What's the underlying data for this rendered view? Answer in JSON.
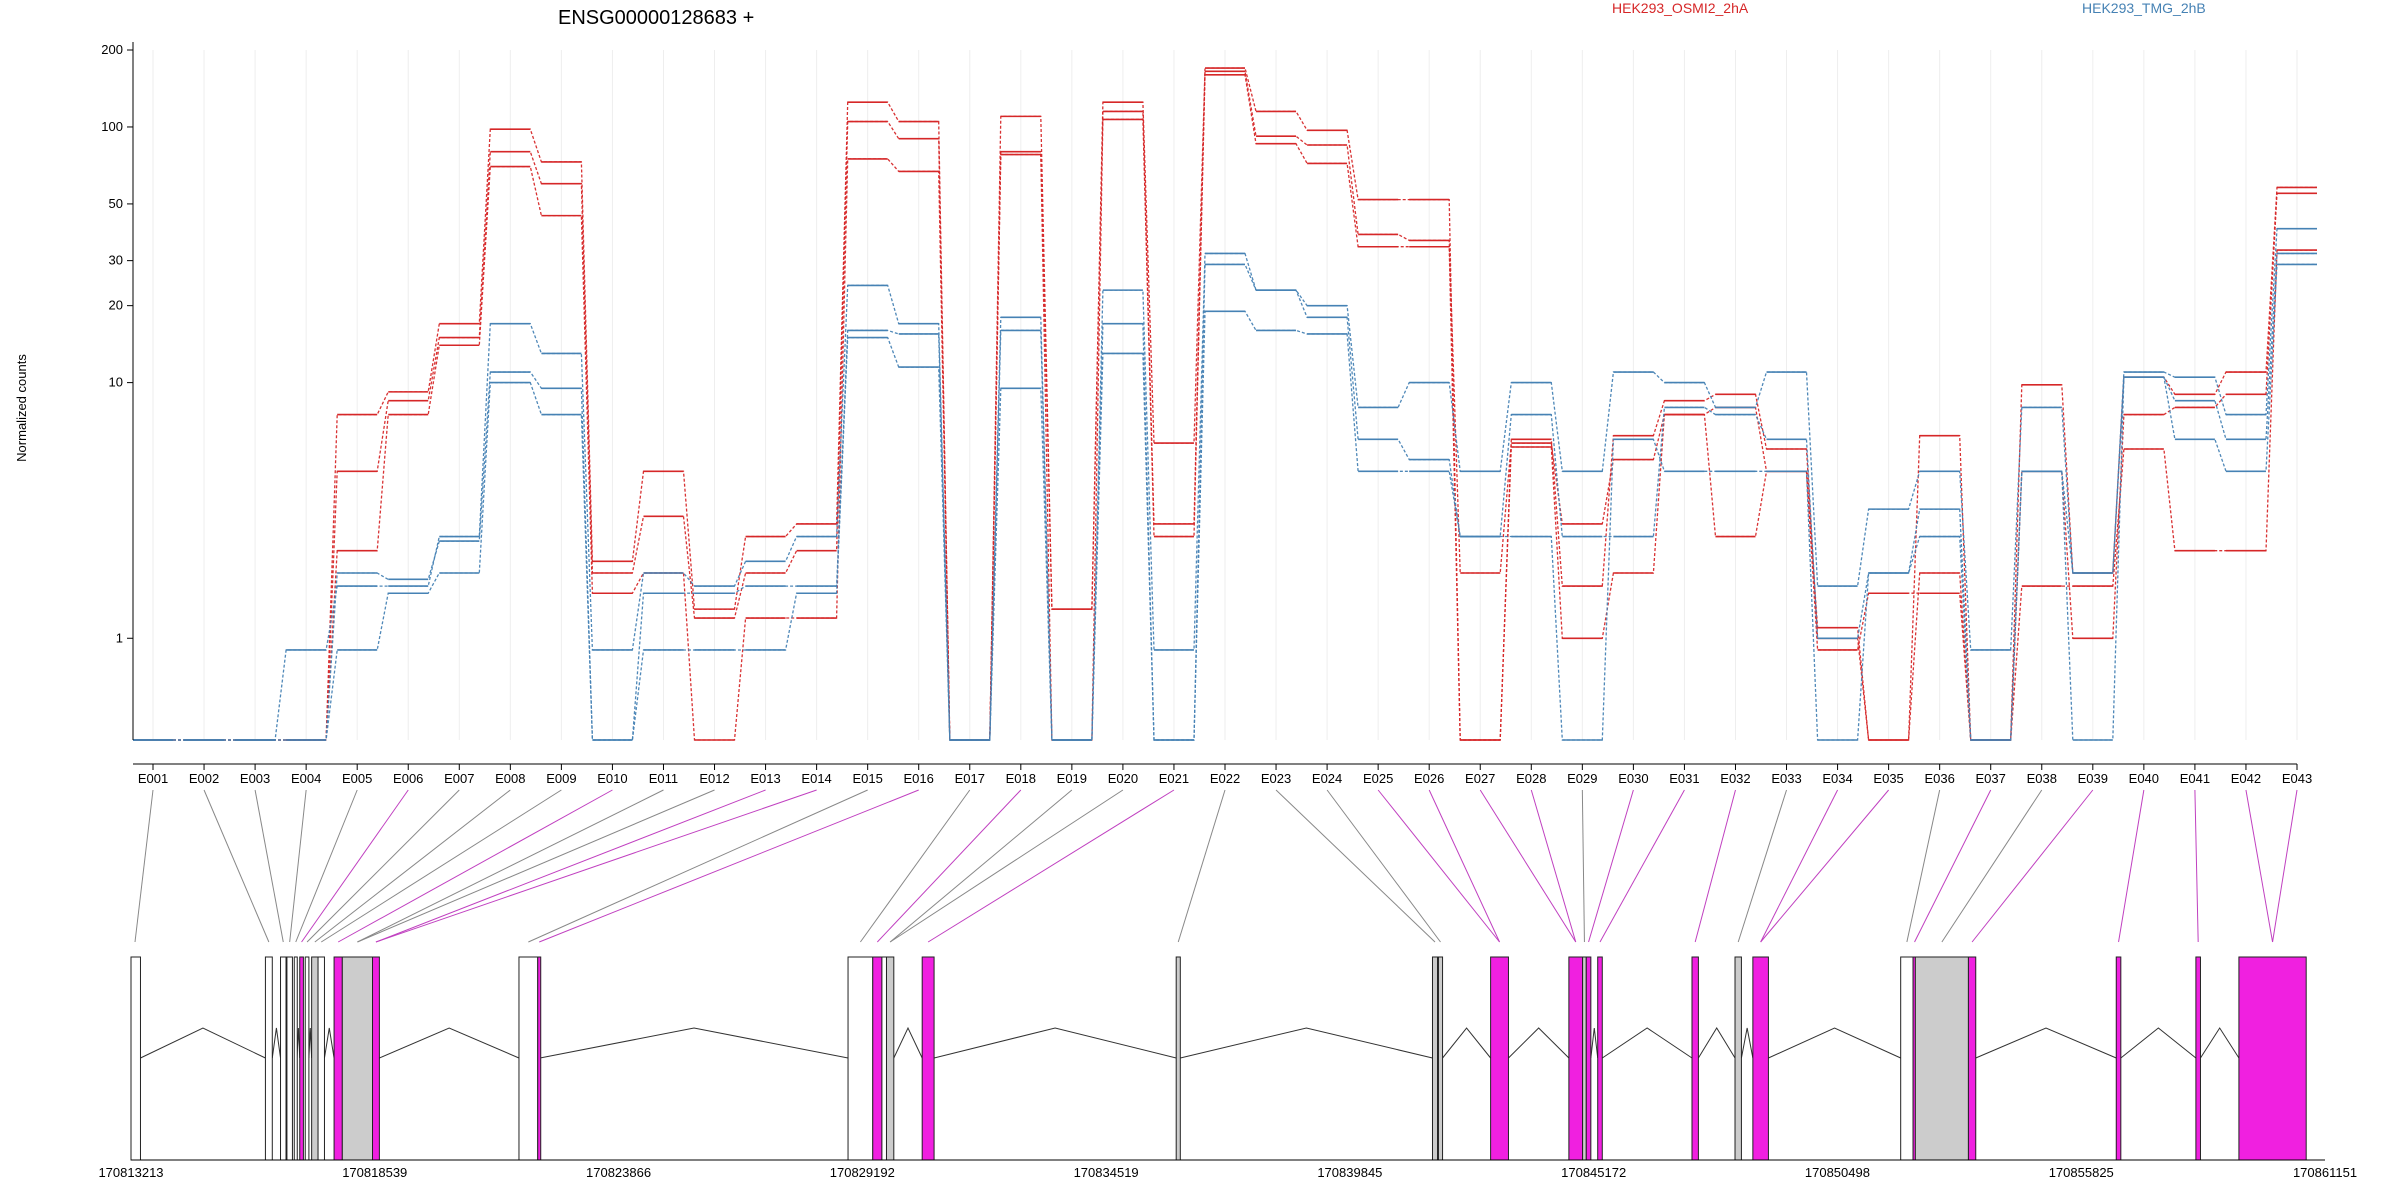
{
  "chart_data": {
    "type": "line",
    "title": "ENSG00000128683 +",
    "ylabel": "Normalized counts",
    "yscale": "log",
    "y_floor": 0.4,
    "ylim": [
      0.4,
      200
    ],
    "yticks": [
      1,
      10,
      20,
      30,
      50,
      100,
      200
    ],
    "grid": "vertical",
    "legend": [
      {
        "label": "HEK293_OSMI2_2hA",
        "color": "#d62728"
      },
      {
        "label": "HEK293_TMG_2hB",
        "color": "#4682b4"
      }
    ],
    "categories": [
      "E001",
      "E002",
      "E003",
      "E004",
      "E005",
      "E006",
      "E007",
      "E008",
      "E009",
      "E010",
      "E011",
      "E012",
      "E013",
      "E014",
      "E015",
      "E016",
      "E017",
      "E018",
      "E019",
      "E020",
      "E021",
      "E022",
      "E023",
      "E024",
      "E025",
      "E026",
      "E027",
      "E028",
      "E029",
      "E030",
      "E031",
      "E032",
      "E033",
      "E034",
      "E035",
      "E036",
      "E037",
      "E038",
      "E039",
      "E040",
      "E041",
      "E042",
      "E043"
    ],
    "series": [
      {
        "group": "HEK293_OSMI2_2hA",
        "color": "#d62728",
        "values": [
          0.4,
          0.4,
          0.4,
          0.4,
          7.5,
          9.2,
          17,
          98,
          73,
          2,
          4.5,
          1.3,
          2.5,
          2.8,
          125,
          105,
          0.4,
          110,
          1.3,
          125,
          5.8,
          170,
          115,
          97,
          52,
          52,
          0.4,
          6,
          1.6,
          6.2,
          8.5,
          9,
          5.5,
          1.0,
          0.4,
          6.2,
          0.4,
          9.8,
          1.8,
          10.5,
          9,
          11,
          58
        ]
      },
      {
        "group": "HEK293_OSMI2_2hA",
        "color": "#d62728",
        "values": [
          0.4,
          0.4,
          0.4,
          0.4,
          4.5,
          8.5,
          15,
          80,
          60,
          1.8,
          3,
          1.2,
          1.8,
          2.2,
          105,
          90,
          0.4,
          80,
          1.3,
          115,
          2.8,
          165,
          92,
          85,
          38,
          36,
          1.8,
          5.8,
          2.8,
          5,
          7.5,
          8,
          4.5,
          1.1,
          0.4,
          1.8,
          0.4,
          4.5,
          1.0,
          7.5,
          8,
          9,
          55
        ]
      },
      {
        "group": "HEK293_OSMI2_2hA",
        "color": "#d62728",
        "values": [
          0.4,
          0.4,
          0.4,
          0.4,
          2.2,
          7.5,
          14,
          70,
          45,
          1.5,
          1.8,
          0.4,
          1.2,
          1.2,
          75,
          67,
          0.4,
          78,
          0.4,
          107,
          2.5,
          160,
          86,
          72,
          34,
          34,
          0.4,
          5.6,
          1.0,
          1.8,
          7.5,
          2.5,
          4.5,
          0.9,
          1.5,
          1.5,
          0.4,
          1.6,
          1.6,
          5.5,
          2.2,
          2.2,
          33
        ]
      },
      {
        "group": "HEK293_TMG_2hB",
        "color": "#4682b4",
        "values": [
          0.4,
          0.4,
          0.4,
          0.9,
          1.6,
          1.6,
          2.5,
          17,
          13,
          0.9,
          1.8,
          1.6,
          2.0,
          2.5,
          24,
          17,
          0.4,
          18,
          0.4,
          23,
          0.9,
          32,
          23,
          20,
          8,
          10,
          4.5,
          10,
          4.5,
          11,
          10,
          8,
          11,
          1.6,
          3.2,
          4.5,
          0.9,
          8,
          1.8,
          11,
          10.5,
          7.5,
          40
        ]
      },
      {
        "group": "HEK293_TMG_2hB",
        "color": "#4682b4",
        "values": [
          0.4,
          0.4,
          0.4,
          0.4,
          1.8,
          1.7,
          2.4,
          11,
          9.5,
          0.4,
          1.5,
          1.5,
          1.6,
          1.6,
          16,
          15.5,
          0.4,
          16,
          0.4,
          17,
          0.4,
          29,
          23,
          18,
          6,
          5,
          2.5,
          7.5,
          2.5,
          2.5,
          8,
          7.5,
          6,
          1.0,
          1.8,
          3.2,
          0.4,
          4.5,
          1.8,
          10.5,
          8.5,
          6,
          32
        ]
      },
      {
        "group": "HEK293_TMG_2hB",
        "color": "#4682b4",
        "values": [
          0.4,
          0.4,
          0.4,
          0.4,
          0.9,
          1.5,
          1.8,
          10,
          7.5,
          0.4,
          0.9,
          0.9,
          0.9,
          1.5,
          15,
          11.5,
          0.4,
          9.5,
          0.4,
          13,
          0.4,
          19,
          16,
          15.5,
          4.5,
          4.5,
          2.5,
          2.5,
          0.4,
          6,
          4.5,
          4.5,
          4.5,
          0.4,
          1.8,
          2.5,
          0.4,
          4.5,
          0.4,
          10.5,
          6,
          4.5,
          29
        ]
      }
    ],
    "gene_model": {
      "coord_ticks": [
        "170813213",
        "170818539",
        "170823866",
        "170829192",
        "170834519",
        "170839845",
        "170845172",
        "170850498",
        "170855825",
        "170861151"
      ],
      "coord_range": [
        170813213,
        170861151
      ],
      "exons": [
        {
          "start": 170813213,
          "end": 170813420,
          "fill": "#ffffff",
          "links": []
        },
        {
          "start": 170816150,
          "end": 170816300,
          "fill": "#ffffff",
          "links": [
            "E002"
          ]
        },
        {
          "start": 170816480,
          "end": 170816600,
          "fill": "#ffffff",
          "links": [
            "E003"
          ]
        },
        {
          "start": 170816620,
          "end": 170816740,
          "fill": "#ffffff",
          "links": [
            "E004"
          ]
        },
        {
          "start": 170816780,
          "end": 170816840,
          "fill": "#ffffff",
          "links": [
            "E005"
          ]
        },
        {
          "start": 170816900,
          "end": 170816980,
          "fill": "#f020e0",
          "links": [
            "E006"
          ]
        },
        {
          "start": 170817020,
          "end": 170817100,
          "fill": "#ffffff",
          "links": [
            "E007"
          ]
        },
        {
          "start": 170817160,
          "end": 170817300,
          "fill": "#cccccc",
          "links": [
            "E008"
          ]
        },
        {
          "start": 170817300,
          "end": 170817440,
          "fill": "#ffffff",
          "links": [
            "E009"
          ]
        },
        {
          "start": 170817650,
          "end": 170817830,
          "fill": "#f020e0",
          "links": [
            "E010"
          ]
        },
        {
          "start": 170817830,
          "end": 170818490,
          "fill": "#cccccc",
          "links": [
            "E011",
            "E012"
          ]
        },
        {
          "start": 170818490,
          "end": 170818640,
          "fill": "#f020e0",
          "links": [
            "E013",
            "E014"
          ]
        },
        {
          "start": 170821690,
          "end": 170822100,
          "fill": "#ffffff",
          "links": [
            "E015"
          ]
        },
        {
          "start": 170822100,
          "end": 170822150,
          "fill": "#f020e0",
          "links": [
            "E016"
          ]
        },
        {
          "start": 170828880,
          "end": 170829420,
          "fill": "#ffffff",
          "links": [
            "E017"
          ]
        },
        {
          "start": 170829420,
          "end": 170829620,
          "fill": "#f020e0",
          "links": [
            "E018"
          ]
        },
        {
          "start": 170829620,
          "end": 170829720,
          "fill": "#ffffff",
          "links": []
        },
        {
          "start": 170829720,
          "end": 170829880,
          "fill": "#cccccc",
          "links": [
            "E019",
            "E020"
          ]
        },
        {
          "start": 170830500,
          "end": 170830760,
          "fill": "#f020e0",
          "links": [
            "E021"
          ]
        },
        {
          "start": 170836050,
          "end": 170836140,
          "fill": "#cccccc",
          "links": [
            "E022"
          ]
        },
        {
          "start": 170841650,
          "end": 170841760,
          "fill": "#cccccc",
          "links": [
            "E023"
          ]
        },
        {
          "start": 170841780,
          "end": 170841870,
          "fill": "#cccccc",
          "links": [
            "E024"
          ]
        },
        {
          "start": 170842920,
          "end": 170843310,
          "fill": "#f020e0",
          "links": [
            "E025",
            "E026"
          ]
        },
        {
          "start": 170844630,
          "end": 170844930,
          "fill": "#f020e0",
          "links": [
            "E027",
            "E028"
          ]
        },
        {
          "start": 170844930,
          "end": 170845010,
          "fill": "#cccccc",
          "links": [
            "E029"
          ]
        },
        {
          "start": 170845010,
          "end": 170845110,
          "fill": "#f020e0",
          "links": [
            "E030"
          ]
        },
        {
          "start": 170845260,
          "end": 170845360,
          "fill": "#f020e0",
          "links": [
            "E031"
          ]
        },
        {
          "start": 170847320,
          "end": 170847460,
          "fill": "#f020e0",
          "links": [
            "E032"
          ]
        },
        {
          "start": 170848260,
          "end": 170848400,
          "fill": "#cccccc",
          "links": [
            "E033"
          ]
        },
        {
          "start": 170848650,
          "end": 170848990,
          "fill": "#f020e0",
          "links": [
            "E034",
            "E035"
          ]
        },
        {
          "start": 170851880,
          "end": 170852150,
          "fill": "#ffffff",
          "links": [
            "E036"
          ]
        },
        {
          "start": 170852150,
          "end": 170852200,
          "fill": "#f020e0",
          "links": [
            "E037"
          ]
        },
        {
          "start": 170852200,
          "end": 170853360,
          "fill": "#cccccc",
          "links": [
            "E038"
          ]
        },
        {
          "start": 170853360,
          "end": 170853520,
          "fill": "#f020e0",
          "links": [
            "E039"
          ]
        },
        {
          "start": 170856590,
          "end": 170856690,
          "fill": "#f020e0",
          "links": [
            "E040"
          ]
        },
        {
          "start": 170858330,
          "end": 170858430,
          "fill": "#f020e0",
          "links": [
            "E041"
          ]
        },
        {
          "start": 170859270,
          "end": 170860740,
          "fill": "#f020e0",
          "links": [
            "E042",
            "E043"
          ]
        }
      ]
    }
  }
}
